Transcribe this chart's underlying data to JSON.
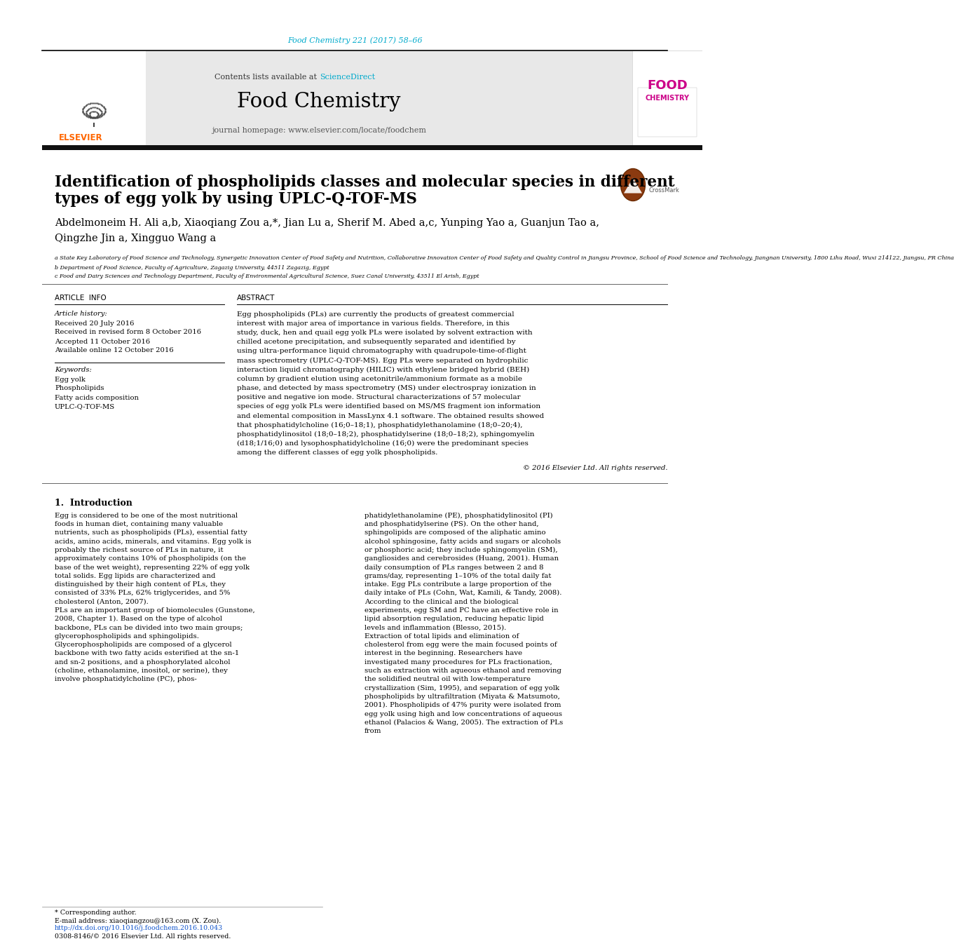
{
  "journal_ref": "Food Chemistry 221 (2017) 58–66",
  "journal_ref_color": "#00AACC",
  "contents_text": "Contents lists available at ",
  "sciencedirect_text": "ScienceDirect",
  "sciencedirect_color": "#00AACC",
  "journal_name": "Food Chemistry",
  "journal_homepage": "journal homepage: www.elsevier.com/locate/foodchem",
  "article_title_line1": "Identification of phospholipids classes and molecular species in different",
  "article_title_line2": "types of egg yolk by using UPLC-Q-TOF-MS",
  "authors": "Abdelmoneim H. Ali a,b, Xiaoqiang Zou a,*, Jian Lu a, Sherif M. Abed a,c, Yunping Yao a, Guanjun Tao a,",
  "authors2": "Qingzhe Jin a, Xingguo Wang a",
  "affil_a": "a State Key Laboratory of Food Science and Technology, Synergetic Innovation Center of Food Safety and Nutrition, Collaborative Innovation Center of Food Safety and Quality Control in Jiangsu Province, School of Food Science and Technology, Jiangnan University, 1800 Lihu Road, Wuxi 214122, Jiangsu, PR China",
  "affil_b": "b Department of Food Science, Faculty of Agriculture, Zagazig University, 44511 Zagazig, Egypt",
  "affil_c": "c Food and Dairy Sciences and Technology Department, Faculty of Environmental Agricultural Science, Suez Canal University, 43511 El Arish, Egypt",
  "article_info_label": "ARTICLE  INFO",
  "abstract_label": "ABSTRACT",
  "article_history_label": "Article history:",
  "received1": "Received 20 July 2016",
  "received2": "Received in revised form 8 October 2016",
  "accepted": "Accepted 11 October 2016",
  "available": "Available online 12 October 2016",
  "keywords_label": "Keywords:",
  "keyword1": "Egg yolk",
  "keyword2": "Phospholipids",
  "keyword3": "Fatty acids composition",
  "keyword4": "UPLC-Q-TOF-MS",
  "abstract_text": "Egg phospholipids (PLs) are currently the products of greatest commercial interest with major area of importance in various fields. Therefore, in this study, duck, hen and quail egg yolk PLs were isolated by solvent extraction with chilled acetone precipitation, and subsequently separated and identified by using ultra-performance liquid chromatography with quadrupole-time-of-flight mass spectrometry (UPLC-Q-TOF-MS). Egg PLs were separated on hydrophilic interaction liquid chromatography (HILIC) with ethylene bridged hybrid (BEH) column by gradient elution using acetonitrile/ammonium formate as a mobile phase, and detected by mass spectrometry (MS) under electrospray ionization in positive and negative ion mode. Structural characterizations of 57 molecular species of egg yolk PLs were identified based on MS/MS fragment ion information and elemental composition in MassLynx 4.1 software. The obtained results showed that phosphatidylcholine (16;0–18;1), phosphatidylethanolamine (18;0–20;4), phosphatidylinositol (18;0–18;2), phosphatidylserine (18;0–18;2), sphingomyelin (d18;1/16;0) and lysophosphatidylcholine (16;0) were the predominant species among the different classes of egg yolk phospholipids.",
  "copyright": "© 2016 Elsevier Ltd. All rights reserved.",
  "intro_label": "1.  Introduction",
  "intro_col1": "Egg is considered to be one of the most nutritional foods in human diet, containing many valuable nutrients, such as phospholipids (PLs), essential fatty acids, amino acids, minerals, and vitamins. Egg yolk is probably the richest source of PLs in nature, it approximately contains 10% of phospholipids (on the base of the wet weight), representing 22% of egg yolk total solids. Egg lipids are characterized and distinguished by their high content of PLs, they consisted of 33% PLs, 62% triglycerides, and 5% cholesterol (Anton, 2007).\n   PLs are an important group of biomolecules (Gunstone, 2008, Chapter 1). Based on the type of alcohol backbone, PLs can be divided into two main groups; glycerophospholipids and sphingolipids. Glycerophospholipids are composed of a glycerol backbone with two fatty acids esterified at the sn-1 and sn-2 positions, and a phosphorylated alcohol (choline, ethanolamine, inositol, or serine), they involve phosphatidylcholine (PC), phos-",
  "intro_col2": "phatidylethanolamine (PE), phosphatidylinositol (PI) and phosphatidylserine (PS). On the other hand, sphingolipids are composed of the aliphatic amino alcohol sphingosine, fatty acids and sugars or alcohols or phosphoric acid; they include sphingomyelin (SM), gangliosides and cerebrosides (Huang, 2001). Human daily consumption of PLs ranges between 2 and 8 grams/day, representing 1–10% of the total daily fat intake. Egg PLs contribute a large proportion of the daily intake of PLs (Cohn, Wat, Kamili, & Tandy, 2008). According to the clinical and the biological experiments, egg SM and PC have an effective role in lipid absorption regulation, reducing hepatic lipid levels and inflammation (Blesso, 2015).\n   Extraction of total lipids and elimination of cholesterol from egg were the main focused points of interest in the beginning. Researchers have investigated many procedures for PLs fractionation, such as extraction with aqueous ethanol and removing the solidified neutral oil with low-temperature crystallization (Sim, 1995), and separation of egg yolk phospholipids by ultrafiltration (Miyata & Matsumoto, 2001). Phospholipids of 47% purity were isolated from egg yolk using high and low concentrations of aqueous ethanol (Palacios & Wang, 2005). The extraction of PLs from",
  "footnote1": "* Corresponding author.",
  "footnote2": "E-mail address: xiaoqiangzou@163.com (X. Zou).",
  "doi": "http://dx.doi.org/10.1016/j.foodchem.2016.10.043",
  "issn": "0308-8146/© 2016 Elsevier Ltd. All rights reserved.",
  "header_bg": "#E8E8E8",
  "body_bg": "#FFFFFF"
}
